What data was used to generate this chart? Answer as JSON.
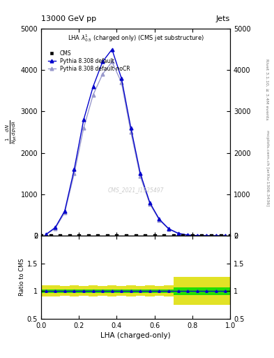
{
  "title_top": "13000 GeV pp",
  "title_top_right": "Jets",
  "plot_title": "LHA $\\lambda^1_{0.5}$ (charged only) (CMS jet substructure)",
  "xlabel": "LHA (charged-only)",
  "right_label_top": "Rivet 3.1.10, ≥ 3.4M events",
  "right_label_bottom": "mcplots.cern.ch [arXiv:1306.3436]",
  "watermark": "CMS_2021_I1925497",
  "cms_x": [
    0.0,
    0.05,
    0.1,
    0.15,
    0.2,
    0.25,
    0.3,
    0.35,
    0.4,
    0.45,
    0.5,
    0.55,
    0.6,
    0.65,
    0.7,
    0.75,
    0.8,
    0.85,
    0.9,
    0.95,
    1.0
  ],
  "cms_y": [
    2,
    2,
    2,
    2,
    2,
    2,
    2,
    2,
    2,
    2,
    2,
    2,
    2,
    2,
    2,
    2,
    2,
    2,
    2,
    2,
    2
  ],
  "pythia_default_x": [
    0.025,
    0.075,
    0.125,
    0.175,
    0.225,
    0.275,
    0.325,
    0.375,
    0.425,
    0.475,
    0.525,
    0.575,
    0.625,
    0.675,
    0.725,
    0.775,
    0.825,
    0.875,
    0.925,
    0.975
  ],
  "pythia_default_y": [
    30,
    200,
    600,
    1600,
    2800,
    3600,
    4200,
    4500,
    3800,
    2600,
    1500,
    800,
    400,
    170,
    60,
    18,
    5,
    2,
    0.8,
    0.2
  ],
  "pythia_nocr_x": [
    0.025,
    0.075,
    0.125,
    0.175,
    0.225,
    0.275,
    0.325,
    0.375,
    0.425,
    0.475,
    0.525,
    0.575,
    0.625,
    0.675,
    0.725,
    0.775,
    0.825,
    0.875,
    0.925,
    0.975
  ],
  "pythia_nocr_y": [
    25,
    180,
    560,
    1500,
    2600,
    3400,
    3900,
    4200,
    3700,
    2500,
    1430,
    770,
    380,
    160,
    55,
    16,
    4,
    1.5,
    0.6,
    0.15
  ],
  "color_cms": "#000000",
  "color_pythia_default": "#0000cc",
  "color_pythia_nocr": "#9999cc",
  "color_ratio_green": "#00dd00",
  "color_ratio_yellow": "#dddd00",
  "ylim_main": [
    0,
    5000
  ],
  "ylim_ratio": [
    0.5,
    2.0
  ],
  "xlim": [
    0.0,
    1.0
  ],
  "yticks_main": [
    0,
    1000,
    2000,
    3000,
    4000,
    5000
  ],
  "ytick_labels_main": [
    "0",
    "1000",
    "2000",
    "3000",
    "4000",
    "5000"
  ],
  "ratio_yticks": [
    0.5,
    1.0,
    1.5,
    2.0
  ],
  "ratio_ytick_labels": [
    "0.5",
    "1",
    "1.5",
    "2"
  ],
  "band_x_edges": [
    0.0,
    0.05,
    0.1,
    0.15,
    0.2,
    0.25,
    0.3,
    0.35,
    0.4,
    0.45,
    0.5,
    0.55,
    0.6,
    0.65,
    0.7,
    0.75,
    0.8,
    0.85,
    0.9,
    0.95,
    1.0
  ],
  "yellow_lo": [
    0.9,
    0.9,
    0.91,
    0.9,
    0.91,
    0.9,
    0.91,
    0.9,
    0.91,
    0.9,
    0.91,
    0.9,
    0.91,
    0.9,
    0.75,
    0.75,
    0.75,
    0.75,
    0.75,
    0.75
  ],
  "yellow_hi": [
    1.1,
    1.1,
    1.09,
    1.1,
    1.09,
    1.1,
    1.09,
    1.1,
    1.09,
    1.1,
    1.09,
    1.1,
    1.09,
    1.1,
    1.25,
    1.25,
    1.25,
    1.25,
    1.25,
    1.25
  ],
  "green_lo": [
    0.97,
    0.97,
    0.97,
    0.97,
    0.97,
    0.97,
    0.97,
    0.97,
    0.97,
    0.97,
    0.97,
    0.97,
    0.97,
    0.97,
    0.93,
    0.93,
    0.93,
    0.93,
    0.93,
    0.93
  ],
  "green_hi": [
    1.03,
    1.03,
    1.03,
    1.03,
    1.03,
    1.03,
    1.03,
    1.03,
    1.03,
    1.03,
    1.03,
    1.03,
    1.03,
    1.03,
    1.07,
    1.07,
    1.07,
    1.07,
    1.07,
    1.07
  ]
}
